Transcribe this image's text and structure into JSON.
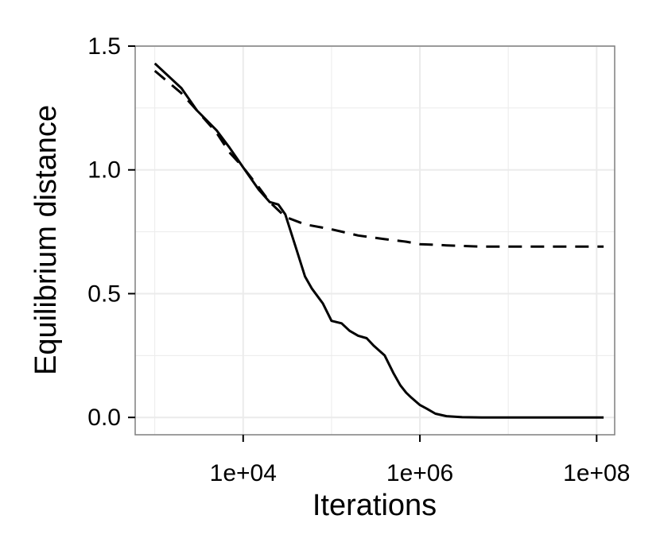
{
  "chart_data": {
    "type": "line",
    "title": "",
    "xlabel": "Iterations",
    "ylabel": "Equilibrium distance",
    "xscale": "log10",
    "xlim": [
      600,
      160000000
    ],
    "ylim": [
      -0.07,
      1.5
    ],
    "xticks": [
      10000,
      1000000,
      100000000
    ],
    "xtick_labels": [
      "1e+04",
      "1e+06",
      "1e+08"
    ],
    "yticks": [
      0.0,
      0.5,
      1.0,
      1.5
    ],
    "ytick_labels": [
      "0.0",
      "0.5",
      "1.0",
      "1.5"
    ],
    "grid": true,
    "background": "#ffffff",
    "grid_color": "#ebebeb",
    "panel_border_color": "#7f7f7f",
    "line_color": "#000000",
    "series": [
      {
        "linestyle": "solid",
        "x": [
          1000,
          2000,
          3000,
          5000,
          7000,
          10000,
          15000,
          20000,
          25000,
          30000,
          40000,
          50000,
          60000,
          80000,
          100000,
          130000,
          160000,
          200000,
          250000,
          300000,
          400000,
          500000,
          600000,
          700000,
          800000,
          1000000,
          1200000,
          1500000,
          2000000,
          3000000,
          5000000,
          10000000,
          100000000,
          120000000
        ],
        "y": [
          1.43,
          1.33,
          1.24,
          1.16,
          1.09,
          1.01,
          0.92,
          0.87,
          0.86,
          0.82,
          0.68,
          0.57,
          0.52,
          0.46,
          0.39,
          0.38,
          0.35,
          0.33,
          0.32,
          0.29,
          0.25,
          0.18,
          0.13,
          0.1,
          0.08,
          0.05,
          0.035,
          0.015,
          0.005,
          0.001,
          0.0,
          0.0,
          0.0,
          0.0
        ]
      },
      {
        "linestyle": "dashed",
        "x": [
          1000,
          2000,
          3000,
          5000,
          7000,
          10000,
          15000,
          20000,
          30000,
          50000,
          100000,
          200000,
          400000,
          700000,
          1000000,
          2000000,
          5000000,
          10000000,
          30000000,
          100000000,
          120000000
        ],
        "y": [
          1.4,
          1.31,
          1.24,
          1.15,
          1.07,
          1.01,
          0.93,
          0.87,
          0.81,
          0.78,
          0.76,
          0.735,
          0.72,
          0.71,
          0.7,
          0.695,
          0.69,
          0.69,
          0.69,
          0.69,
          0.69
        ]
      }
    ]
  }
}
